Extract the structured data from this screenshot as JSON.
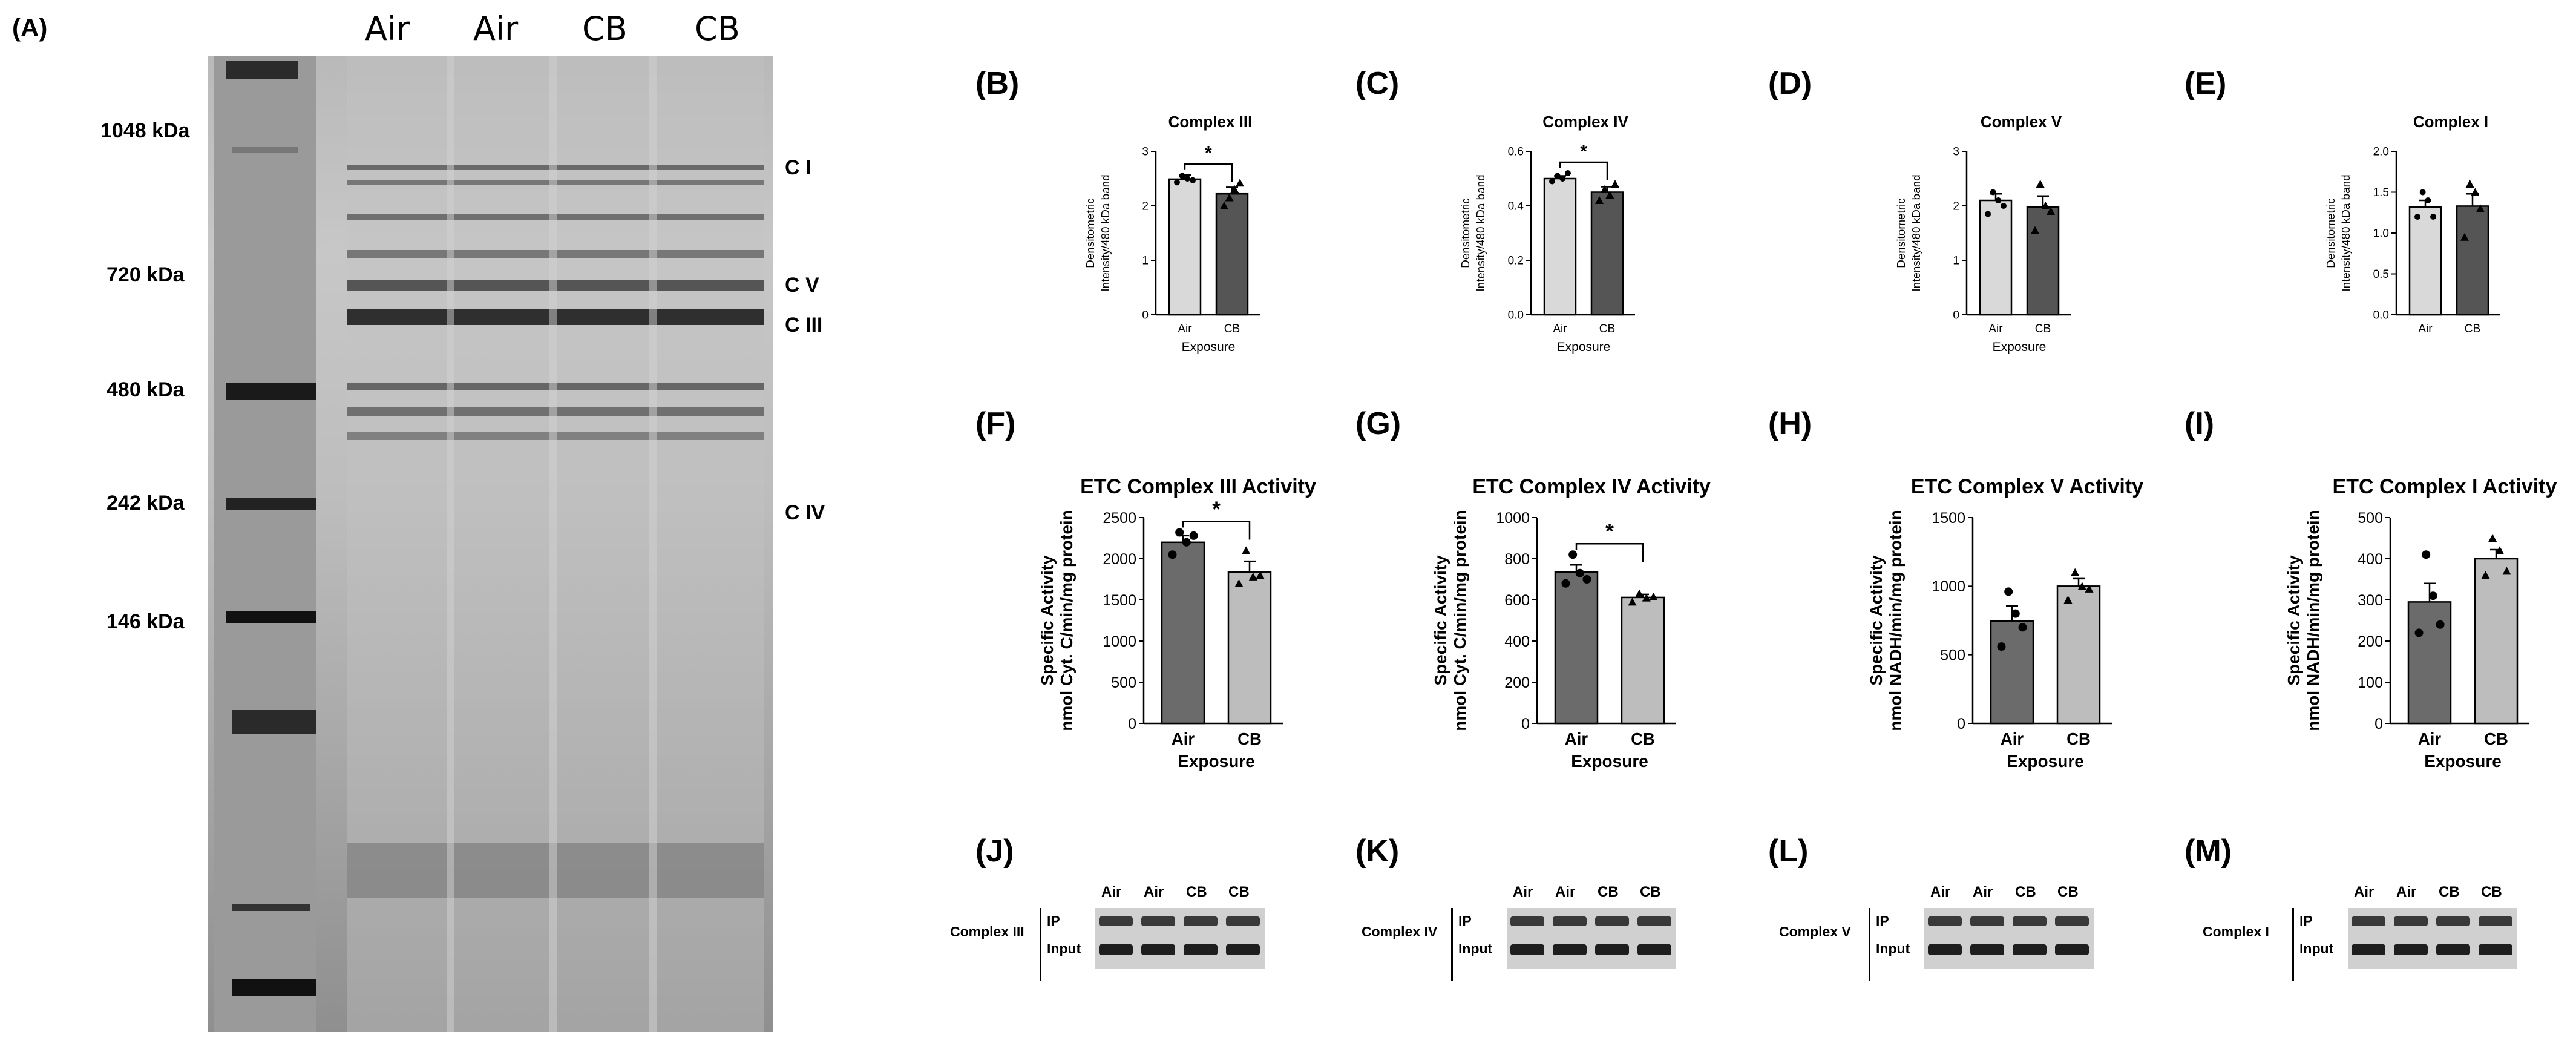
{
  "panel_a": {
    "label": "(A)",
    "lane_labels": [
      "Air",
      "Air",
      "CB",
      "CB"
    ],
    "markers": [
      "1048 kDa",
      "720 kDa",
      "480 kDa",
      "242 kDa",
      "146 kDa"
    ],
    "complex_tags": [
      "C I",
      "C V",
      "C III",
      "C IV"
    ]
  },
  "panel_labels": [
    "(B)",
    "(C)",
    "(D)",
    "(E)",
    "(F)",
    "(G)",
    "(H)",
    "(I)",
    "(J)",
    "(K)",
    "(L)",
    "(M)"
  ],
  "chart_data": [
    {
      "panel": "(B)",
      "type": "bar",
      "title": "Complex III",
      "ylabel": "Densitometric Intensity/480 kDa band",
      "xlabel": "Exposure",
      "categories": [
        "Air",
        "CB"
      ],
      "values": [
        2.49,
        2.22
      ],
      "errors": [
        0.08,
        0.12
      ],
      "ylim": [
        0,
        3
      ],
      "yticks": [
        "0",
        "1",
        "2",
        "3"
      ],
      "significance": "*",
      "points": [
        [
          2.43,
          2.55,
          2.5,
          2.47
        ],
        [
          2.0,
          2.15,
          2.3,
          2.42
        ]
      ],
      "colors": [
        "#d9d9d9",
        "#555555"
      ]
    },
    {
      "panel": "(C)",
      "type": "bar",
      "title": "Complex IV",
      "ylabel": "Densitometric Intensity/480 kDa band",
      "xlabel": "Exposure",
      "categories": [
        "Air",
        "CB"
      ],
      "values": [
        0.5,
        0.45
      ],
      "errors": [
        0.01,
        0.02
      ],
      "ylim": [
        0,
        0.6
      ],
      "yticks": [
        "0.0",
        "0.2",
        "0.4",
        "0.6"
      ],
      "significance": "*",
      "points": [
        [
          0.49,
          0.51,
          0.5,
          0.52
        ],
        [
          0.42,
          0.46,
          0.44,
          0.48
        ]
      ],
      "colors": [
        "#d9d9d9",
        "#555555"
      ]
    },
    {
      "panel": "(D)",
      "type": "bar",
      "title": "Complex V",
      "ylabel": "Densitometric Intensity/480 kDa band",
      "xlabel": "Exposure",
      "categories": [
        "Air",
        "CB"
      ],
      "values": [
        2.1,
        1.98
      ],
      "errors": [
        0.12,
        0.2
      ],
      "ylim": [
        0,
        3
      ],
      "yticks": [
        "0",
        "1",
        "2",
        "3"
      ],
      "significance": "",
      "points": [
        [
          1.85,
          2.25,
          2.1,
          2.0
        ],
        [
          1.55,
          2.4,
          2.0,
          1.9
        ]
      ],
      "colors": [
        "#d9d9d9",
        "#555555"
      ]
    },
    {
      "panel": "(E)",
      "type": "bar",
      "title": "Complex I",
      "ylabel": "Densitometric Intensity/480 kDa band",
      "xlabel": "",
      "categories": [
        "Air",
        "CB"
      ],
      "values": [
        1.32,
        1.33
      ],
      "errors": [
        0.08,
        0.15
      ],
      "ylim": [
        0,
        2.0
      ],
      "yticks": [
        "0.0",
        "0.5",
        "1.0",
        "1.5",
        "2.0"
      ],
      "significance": "",
      "points": [
        [
          1.2,
          1.5,
          1.4,
          1.2
        ],
        [
          0.95,
          1.6,
          1.5,
          1.3
        ]
      ],
      "colors": [
        "#d9d9d9",
        "#555555"
      ]
    },
    {
      "panel": "(F)",
      "type": "bar",
      "title": "ETC Complex III Activity",
      "ylabel": "Specific Activity nmol Cyt. C/min/mg protein",
      "xlabel": "Exposure",
      "categories": [
        "Air",
        "CB"
      ],
      "values": [
        2200,
        1840
      ],
      "errors": [
        80,
        130
      ],
      "ylim": [
        0,
        2500
      ],
      "yticks": [
        "0",
        "500",
        "1000",
        "1500",
        "2000",
        "2500"
      ],
      "significance": "*",
      "points": [
        [
          2050,
          2320,
          2200,
          2280
        ],
        [
          1700,
          2100,
          1780,
          1800
        ]
      ],
      "colors": [
        "#6b6b6b",
        "#bdbdbd"
      ]
    },
    {
      "panel": "(G)",
      "type": "bar",
      "title": "ETC Complex IV Activity",
      "ylabel": "Specific Activity nmol Cyt. C/min/mg protein",
      "xlabel": "Exposure",
      "categories": [
        "Air",
        "CB"
      ],
      "values": [
        735,
        612
      ],
      "errors": [
        35,
        15
      ],
      "ylim": [
        0,
        1000
      ],
      "yticks": [
        "0",
        "200",
        "400",
        "600",
        "800",
        "1000"
      ],
      "significance": "*",
      "points": [
        [
          680,
          820,
          730,
          700
        ],
        [
          590,
          630,
          610,
          615
        ]
      ],
      "colors": [
        "#6b6b6b",
        "#bdbdbd"
      ]
    },
    {
      "panel": "(H)",
      "type": "bar",
      "title": "ETC Complex V Activity",
      "ylabel": "Specific Activity nmol NADH/min/mg protein",
      "xlabel": "Exposure",
      "categories": [
        "Air",
        "CB"
      ],
      "values": [
        745,
        1000
      ],
      "errors": [
        110,
        55
      ],
      "ylim": [
        0,
        1500
      ],
      "yticks": [
        "0",
        "500",
        "1000",
        "1500"
      ],
      "significance": "",
      "points": [
        [
          560,
          960,
          800,
          700
        ],
        [
          900,
          1100,
          1000,
          980
        ]
      ],
      "colors": [
        "#6b6b6b",
        "#bdbdbd"
      ]
    },
    {
      "panel": "(I)",
      "type": "bar",
      "title": "ETC Complex I Activity",
      "ylabel": "Specific Activity nmol NADH/min/mg protein",
      "xlabel": "Exposure",
      "categories": [
        "Air",
        "CB"
      ],
      "values": [
        295,
        400
      ],
      "errors": [
        45,
        22
      ],
      "ylim": [
        0,
        500
      ],
      "yticks": [
        "0",
        "100",
        "200",
        "300",
        "400",
        "500"
      ],
      "significance": "",
      "points": [
        [
          220,
          410,
          310,
          240
        ],
        [
          360,
          450,
          420,
          370
        ]
      ],
      "colors": [
        "#6b6b6b",
        "#bdbdbd"
      ]
    }
  ],
  "blots": [
    {
      "panel": "(J)",
      "complex": "Complex III",
      "lanes": [
        "Air",
        "Air",
        "CB",
        "CB"
      ],
      "rows": [
        "IP",
        "Input"
      ]
    },
    {
      "panel": "(K)",
      "complex": "Complex IV",
      "lanes": [
        "Air",
        "Air",
        "CB",
        "CB"
      ],
      "rows": [
        "IP",
        "Input"
      ]
    },
    {
      "panel": "(L)",
      "complex": "Complex V",
      "lanes": [
        "Air",
        "Air",
        "CB",
        "CB"
      ],
      "rows": [
        "IP",
        "Input"
      ]
    },
    {
      "panel": "(M)",
      "complex": "Complex I",
      "lanes": [
        "Air",
        "Air",
        "CB",
        "CB"
      ],
      "rows": [
        "IP",
        "Input"
      ]
    }
  ]
}
